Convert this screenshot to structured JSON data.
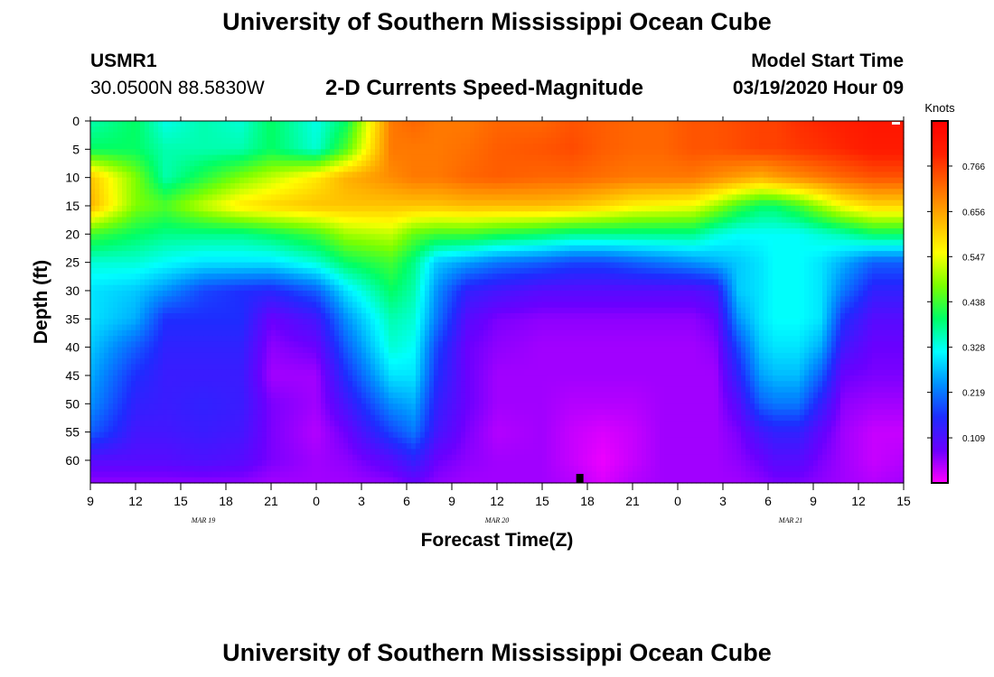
{
  "header": {
    "title": "University of Southern Mississippi Ocean Cube",
    "station_id": "USMR1",
    "station_coords": "30.0500N 88.5830W",
    "chart_subtitle": "2-D Currents Speed-Magnitude",
    "model_label": "Model Start Time",
    "model_time": "03/19/2020 Hour 09"
  },
  "footer": {
    "title": "University of Southern Mississippi Ocean Cube"
  },
  "chart_data": {
    "type": "heatmap",
    "title": "2-D Currents Speed-Magnitude",
    "xlabel": "Forecast Time(Z)",
    "ylabel": "Depth (ft)",
    "x_ticks": [
      "9",
      "12",
      "15",
      "18",
      "21",
      "0",
      "3",
      "6",
      "9",
      "12",
      "15",
      "18",
      "21",
      "0",
      "3",
      "6",
      "9",
      "12",
      "15"
    ],
    "x_range_hours": [
      0,
      54
    ],
    "date_labels": [
      {
        "label": "MAR 19",
        "hour": 7.5
      },
      {
        "label": "MAR 20",
        "hour": 27
      },
      {
        "label": "MAR 21",
        "hour": 46.5
      }
    ],
    "y_ticks": [
      0,
      5,
      10,
      15,
      20,
      25,
      30,
      35,
      40,
      45,
      50,
      55,
      60
    ],
    "ylim": [
      0,
      64
    ],
    "colorbar": {
      "label": "Knots",
      "ticks": [
        0.109,
        0.219,
        0.328,
        0.438,
        0.547,
        0.656,
        0.766
      ],
      "range": [
        0.0,
        0.875
      ],
      "colors": [
        "#ff00ff",
        "#6a00ff",
        "#1e2cff",
        "#0090ff",
        "#00ffff",
        "#00ff66",
        "#7bff00",
        "#ffff00",
        "#ffb400",
        "#ff6a00",
        "#ff2000",
        "#ff0000"
      ]
    },
    "current_time_marker_hour": 32.5,
    "speed_grid": {
      "hours": [
        0,
        3,
        5,
        7.5,
        10,
        12,
        15,
        17,
        20,
        21.5,
        23,
        25,
        27,
        30,
        32,
        34,
        36,
        38,
        40,
        41.5,
        43,
        44.5,
        45.5,
        47,
        48.5,
        50,
        52,
        54
      ],
      "depths": [
        0,
        5,
        10,
        15,
        20,
        25,
        30,
        35,
        40,
        45,
        50,
        55,
        60,
        64
      ],
      "values": [
        [
          0.36,
          0.4,
          0.33,
          0.36,
          0.34,
          0.4,
          0.33,
          0.4,
          0.7,
          0.72,
          0.7,
          0.7,
          0.72,
          0.72,
          0.74,
          0.73,
          0.72,
          0.72,
          0.74,
          0.74,
          0.75,
          0.76,
          0.76,
          0.78,
          0.79,
          0.8,
          0.82,
          0.82
        ],
        [
          0.4,
          0.4,
          0.36,
          0.36,
          0.36,
          0.4,
          0.34,
          0.45,
          0.7,
          0.7,
          0.7,
          0.71,
          0.73,
          0.74,
          0.75,
          0.73,
          0.72,
          0.72,
          0.74,
          0.74,
          0.75,
          0.76,
          0.76,
          0.77,
          0.78,
          0.79,
          0.81,
          0.81
        ],
        [
          0.62,
          0.48,
          0.36,
          0.42,
          0.48,
          0.52,
          0.58,
          0.64,
          0.68,
          0.7,
          0.7,
          0.72,
          0.73,
          0.72,
          0.72,
          0.71,
          0.7,
          0.7,
          0.7,
          0.68,
          0.66,
          0.64,
          0.66,
          0.68,
          0.7,
          0.72,
          0.74,
          0.74
        ],
        [
          0.64,
          0.48,
          0.45,
          0.52,
          0.58,
          0.6,
          0.62,
          0.62,
          0.62,
          0.62,
          0.62,
          0.63,
          0.63,
          0.63,
          0.62,
          0.6,
          0.57,
          0.56,
          0.55,
          0.5,
          0.44,
          0.4,
          0.4,
          0.44,
          0.5,
          0.56,
          0.6,
          0.6
        ],
        [
          0.44,
          0.4,
          0.38,
          0.38,
          0.38,
          0.4,
          0.44,
          0.5,
          0.52,
          0.46,
          0.44,
          0.44,
          0.42,
          0.4,
          0.38,
          0.38,
          0.38,
          0.38,
          0.38,
          0.34,
          0.32,
          0.32,
          0.32,
          0.32,
          0.34,
          0.36,
          0.4,
          0.4
        ],
        [
          0.34,
          0.34,
          0.32,
          0.3,
          0.3,
          0.3,
          0.34,
          0.4,
          0.44,
          0.38,
          0.28,
          0.25,
          0.22,
          0.2,
          0.18,
          0.18,
          0.2,
          0.22,
          0.24,
          0.26,
          0.28,
          0.3,
          0.32,
          0.32,
          0.3,
          0.26,
          0.2,
          0.2
        ],
        [
          0.3,
          0.28,
          0.24,
          0.18,
          0.16,
          0.15,
          0.2,
          0.3,
          0.4,
          0.36,
          0.24,
          0.14,
          0.12,
          0.1,
          0.1,
          0.1,
          0.1,
          0.1,
          0.1,
          0.12,
          0.28,
          0.3,
          0.32,
          0.32,
          0.3,
          0.22,
          0.14,
          0.14
        ],
        [
          0.3,
          0.26,
          0.16,
          0.16,
          0.16,
          0.08,
          0.12,
          0.24,
          0.36,
          0.34,
          0.22,
          0.1,
          0.07,
          0.06,
          0.06,
          0.06,
          0.06,
          0.06,
          0.06,
          0.08,
          0.24,
          0.3,
          0.32,
          0.32,
          0.3,
          0.16,
          0.1,
          0.1
        ],
        [
          0.28,
          0.2,
          0.14,
          0.14,
          0.14,
          0.06,
          0.08,
          0.2,
          0.34,
          0.32,
          0.18,
          0.08,
          0.06,
          0.05,
          0.05,
          0.05,
          0.05,
          0.05,
          0.05,
          0.06,
          0.18,
          0.28,
          0.3,
          0.3,
          0.26,
          0.12,
          0.08,
          0.08
        ],
        [
          0.26,
          0.16,
          0.13,
          0.13,
          0.13,
          0.05,
          0.05,
          0.16,
          0.3,
          0.3,
          0.16,
          0.08,
          0.05,
          0.05,
          0.05,
          0.05,
          0.05,
          0.05,
          0.05,
          0.05,
          0.14,
          0.25,
          0.27,
          0.27,
          0.2,
          0.08,
          0.07,
          0.07
        ],
        [
          0.24,
          0.14,
          0.13,
          0.14,
          0.13,
          0.07,
          0.05,
          0.12,
          0.24,
          0.26,
          0.14,
          0.08,
          0.05,
          0.05,
          0.04,
          0.04,
          0.04,
          0.05,
          0.05,
          0.05,
          0.1,
          0.2,
          0.22,
          0.22,
          0.14,
          0.06,
          0.05,
          0.05
        ],
        [
          0.2,
          0.12,
          0.12,
          0.13,
          0.12,
          0.07,
          0.04,
          0.08,
          0.18,
          0.22,
          0.12,
          0.07,
          0.04,
          0.05,
          0.03,
          0.02,
          0.03,
          0.05,
          0.05,
          0.05,
          0.07,
          0.12,
          0.14,
          0.14,
          0.09,
          0.05,
          0.03,
          0.03
        ],
        [
          0.1,
          0.1,
          0.1,
          0.11,
          0.1,
          0.07,
          0.05,
          0.06,
          0.1,
          0.14,
          0.08,
          0.06,
          0.05,
          0.05,
          0.03,
          0.01,
          0.03,
          0.05,
          0.05,
          0.05,
          0.06,
          0.08,
          0.1,
          0.1,
          0.07,
          0.05,
          0.03,
          0.04
        ],
        [
          0.06,
          0.06,
          0.06,
          0.06,
          0.06,
          0.05,
          0.05,
          0.05,
          0.06,
          0.08,
          0.06,
          0.05,
          0.05,
          0.05,
          0.04,
          0.02,
          0.04,
          0.05,
          0.05,
          0.05,
          0.05,
          0.06,
          0.07,
          0.07,
          0.06,
          0.05,
          0.04,
          0.05
        ]
      ]
    }
  }
}
